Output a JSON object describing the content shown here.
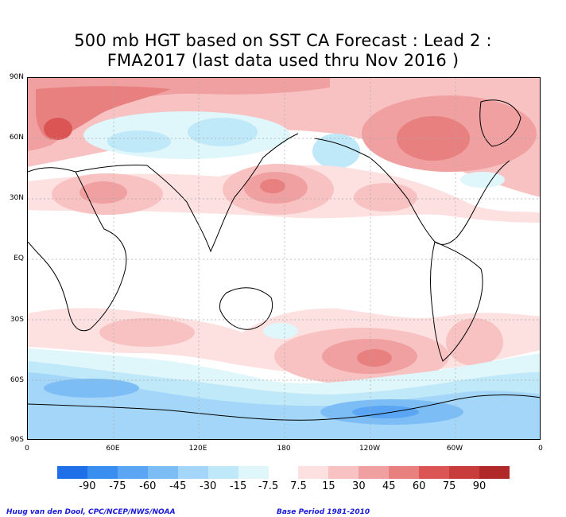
{
  "title": {
    "line1": "500 mb HGT based on SST CA Forecast : Lead 2 :",
    "line2": "FMA2017 (last data used thru Nov 2016 )"
  },
  "map": {
    "lat_labels": [
      "90N",
      "60N",
      "30N",
      "EQ",
      "30S",
      "60S",
      "90S"
    ],
    "lon_labels": [
      "0",
      "60E",
      "120E",
      "180",
      "120W",
      "60W",
      "0"
    ]
  },
  "colorbar": {
    "labels": [
      "-90",
      "-75",
      "-60",
      "-45",
      "-30",
      "-15",
      "-7.5",
      "7.5",
      "15",
      "30",
      "45",
      "60",
      "75",
      "90"
    ],
    "colors": [
      "#1e6fe8",
      "#3a8ef0",
      "#5aa6f4",
      "#7dbdf6",
      "#a3d6f8",
      "#bfe8f8",
      "#dff6fb",
      "#ffffff",
      "#fde0e0",
      "#f8c2c2",
      "#f0a0a0",
      "#e88080",
      "#dc5555",
      "#c83c3c",
      "#b02828"
    ]
  },
  "footer": {
    "left": "Huug van den Dool, CPC/NCEP/NWS/NOAA",
    "right": "Base Period 1981-2010"
  }
}
